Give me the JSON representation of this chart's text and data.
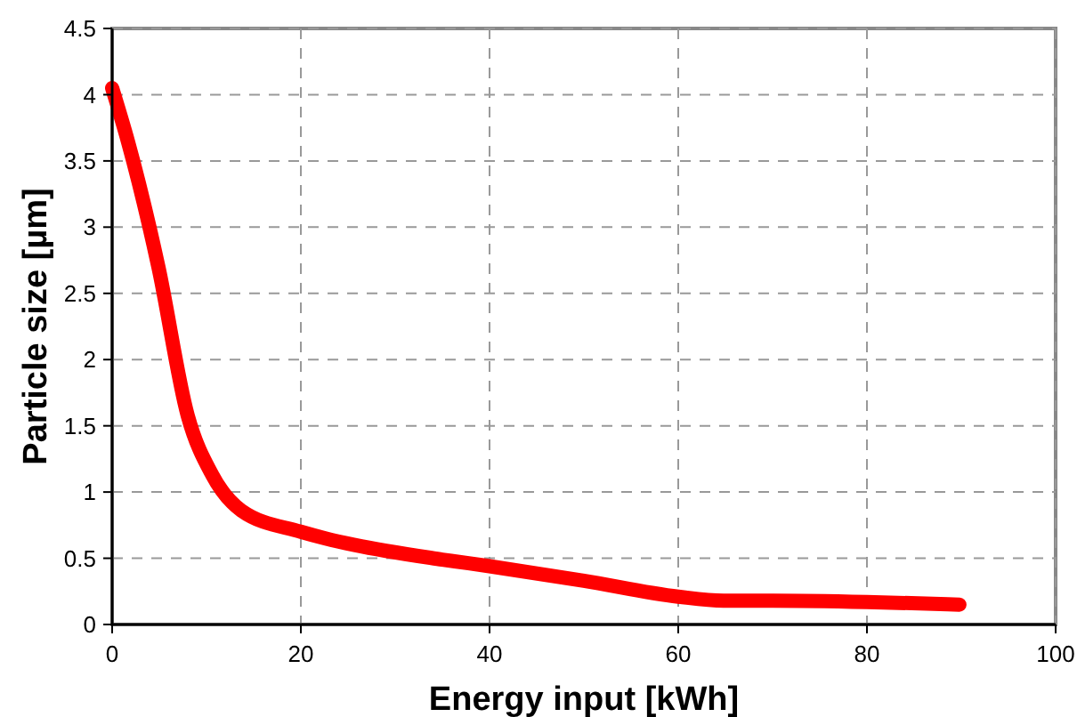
{
  "chart_data": {
    "type": "line",
    "xlabel": "Energy input [kWh]",
    "ylabel": "Particle size [µm]",
    "x": [
      0,
      1.7,
      4.9,
      8,
      10.6,
      13.7,
      20,
      22.6,
      25.7,
      35,
      40,
      50,
      60,
      64.8,
      70,
      80,
      89.8
    ],
    "series": [
      {
        "color": "#ff0000",
        "values": [
          4.05,
          3.64,
          2.7,
          1.58,
          1.13,
          0.86,
          0.7,
          0.65,
          0.6,
          0.49,
          0.44,
          0.33,
          0.21,
          0.18,
          0.18,
          0.17,
          0.15
        ]
      }
    ],
    "xlim": [
      0,
      100
    ],
    "xticks": [
      0,
      20,
      40,
      60,
      80,
      100
    ],
    "ylim": [
      0,
      4.5
    ],
    "yticks": [
      0,
      0.5,
      1,
      1.5,
      2,
      2.5,
      3,
      3.5,
      4,
      4.5
    ],
    "grid": true,
    "marker": "none",
    "line_style": "solid"
  }
}
